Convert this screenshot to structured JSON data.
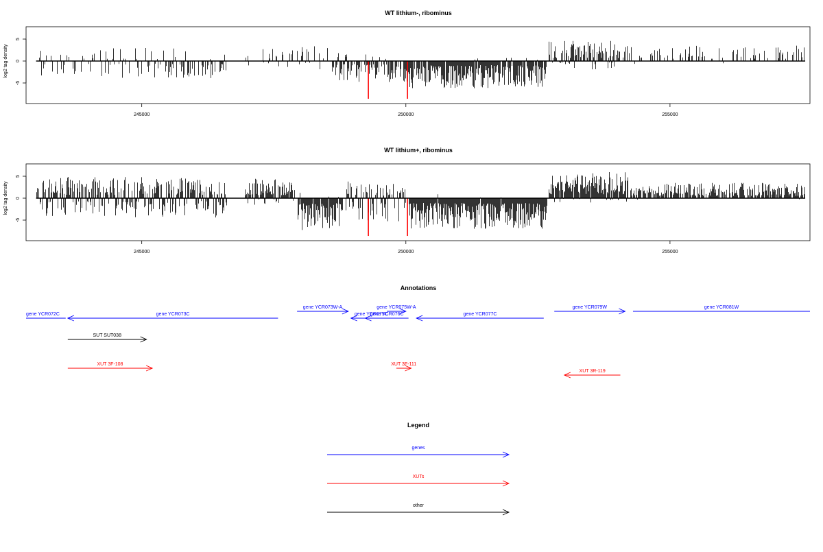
{
  "chart_data": [
    {
      "type": "bar",
      "title": "WT lithium-, ribominus",
      "ylabel": "log2 tag density",
      "xlabel": "",
      "xlim": [
        242810,
        257650
      ],
      "ylim": [
        -9,
        7
      ],
      "y_ticks": [
        "5",
        "0",
        "-5"
      ],
      "y_tick_values": [
        5,
        0,
        -5
      ],
      "x_ticks": [
        "245000",
        "250000",
        "255000"
      ],
      "x_tick_values": [
        245000,
        250000,
        255000
      ],
      "highlight_color": "#ff0000",
      "bar_color": "#000000",
      "highlights": [
        {
          "x": 249290,
          "value": -8.6
        },
        {
          "x": 250030,
          "value": -8.6
        }
      ],
      "segments": [
        {
          "start": 243050,
          "end": 246600,
          "density": 0.35,
          "pos_max": 3.0,
          "neg_max": -4.0,
          "pos_frac": 0.35,
          "seed": 11
        },
        {
          "start": 246950,
          "end": 248550,
          "density": 0.22,
          "pos_max": 3.5,
          "neg_max": -2.0,
          "pos_frac": 0.8,
          "seed": 12
        },
        {
          "start": 248600,
          "end": 249900,
          "density": 0.7,
          "pos_max": 2.0,
          "neg_max": -4.8,
          "pos_frac": 0.12,
          "seed": 13
        },
        {
          "start": 249950,
          "end": 252660,
          "density": 0.95,
          "pos_max": 0.8,
          "neg_max": -6.2,
          "pos_frac": 0.04,
          "seed": 14
        },
        {
          "start": 252700,
          "end": 254050,
          "density": 0.7,
          "pos_max": 4.6,
          "neg_max": -2.0,
          "pos_frac": 0.85,
          "seed": 15
        },
        {
          "start": 254100,
          "end": 257560,
          "density": 0.25,
          "pos_max": 3.5,
          "neg_max": -1.0,
          "pos_frac": 0.97,
          "seed": 16
        }
      ]
    },
    {
      "type": "bar",
      "title": "WT lithium+, ribominus",
      "ylabel": "log2 tag density",
      "xlabel": "",
      "xlim": [
        242810,
        257650
      ],
      "ylim": [
        -9,
        7
      ],
      "y_ticks": [
        "5",
        "0",
        "-5"
      ],
      "y_tick_values": [
        5,
        0,
        -5
      ],
      "x_ticks": [
        "245000",
        "250000",
        "255000"
      ],
      "x_tick_values": [
        245000,
        250000,
        255000
      ],
      "highlight_color": "#ff0000",
      "bar_color": "#000000",
      "highlights": [
        {
          "x": 249290,
          "value": -8.6
        },
        {
          "x": 250030,
          "value": -8.6
        }
      ],
      "segments": [
        {
          "start": 243000,
          "end": 246600,
          "density": 0.9,
          "pos_max": 5.0,
          "neg_max": -4.5,
          "pos_frac": 0.6,
          "seed": 21
        },
        {
          "start": 246950,
          "end": 247900,
          "density": 0.85,
          "pos_max": 4.5,
          "neg_max": -1.5,
          "pos_frac": 0.85,
          "seed": 22
        },
        {
          "start": 247950,
          "end": 248800,
          "density": 0.95,
          "pos_max": 1.5,
          "neg_max": -7.5,
          "pos_frac": 0.05,
          "seed": 23
        },
        {
          "start": 248850,
          "end": 250000,
          "density": 0.75,
          "pos_max": 4.0,
          "neg_max": -5.5,
          "pos_frac": 0.45,
          "seed": 24
        },
        {
          "start": 250050,
          "end": 252660,
          "density": 1.0,
          "pos_max": 1.0,
          "neg_max": -7.0,
          "pos_frac": 0.03,
          "seed": 25
        },
        {
          "start": 252700,
          "end": 254200,
          "density": 1.0,
          "pos_max": 6.0,
          "neg_max": -1.0,
          "pos_frac": 0.92,
          "seed": 26
        },
        {
          "start": 254250,
          "end": 257560,
          "density": 0.8,
          "pos_max": 3.5,
          "neg_max": -0.5,
          "pos_frac": 0.98,
          "seed": 27
        }
      ]
    }
  ],
  "annotations": {
    "title": "Annotations",
    "features": [
      {
        "label": "gene YCR072C",
        "start": 242800,
        "end": 243560,
        "strand": "-",
        "category": "gene",
        "row": 1,
        "arrow": false
      },
      {
        "label": "gene YCR073C",
        "start": 243600,
        "end": 247580,
        "strand": "-",
        "category": "gene",
        "row": 1,
        "arrow": true
      },
      {
        "label": "gene YCR073W-A",
        "start": 247940,
        "end": 248910,
        "strand": "+",
        "category": "gene",
        "row": 0,
        "arrow": true
      },
      {
        "label": "gene YCR075C",
        "start": 248960,
        "end": 249730,
        "strand": "-",
        "category": "gene",
        "row": 1,
        "arrow": true
      },
      {
        "label": "gene YCR075W-A",
        "start": 249640,
        "end": 250000,
        "strand": "+",
        "category": "gene",
        "row": 0,
        "arrow": true
      },
      {
        "label": "gene YCR076C",
        "start": 250000,
        "end": 250000,
        "strand": "-",
        "category": "gene",
        "row": 1,
        "arrow": true,
        "x1": 249230,
        "x2": 250050
      },
      {
        "label": "gene YCR077C",
        "start": 250200,
        "end": 252610,
        "strand": "-",
        "category": "gene",
        "row": 1,
        "arrow": true
      },
      {
        "label": "gene YCR079W",
        "start": 252810,
        "end": 254150,
        "strand": "+",
        "category": "gene",
        "row": 0,
        "arrow": true
      },
      {
        "label": "gene YCR081W",
        "start": 254300,
        "end": 258000,
        "strand": "+",
        "category": "gene",
        "row": 0,
        "arrow": false
      },
      {
        "label": "SUT SUT038",
        "start": 243600,
        "end": 245090,
        "strand": "+",
        "category": "other",
        "row": 2,
        "arrow": true
      },
      {
        "label": "XUT 3F-108",
        "start": 243600,
        "end": 245200,
        "strand": "+",
        "category": "xut",
        "row": 3,
        "arrow": true
      },
      {
        "label": "XUT 3F-111",
        "start": 249820,
        "end": 250100,
        "strand": "+",
        "category": "xut",
        "row": 3,
        "arrow": true
      },
      {
        "label": "XUT 3R-119",
        "start": 253000,
        "end": 254060,
        "strand": "-",
        "category": "xut",
        "row": 4,
        "arrow": true
      }
    ]
  },
  "legend": {
    "title": "Legend",
    "items": [
      {
        "label": "genes",
        "color": "#0000ff"
      },
      {
        "label": "XUTs",
        "color": "#ff0000"
      },
      {
        "label": "other",
        "color": "#000000"
      }
    ]
  },
  "colors": {
    "gene": "#0000ff",
    "xut": "#ff0000",
    "other": "#000000",
    "axis": "#000000"
  }
}
